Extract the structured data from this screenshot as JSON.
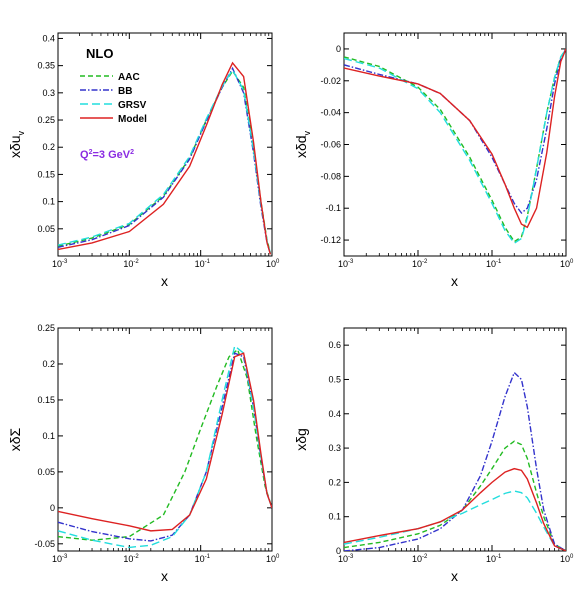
{
  "colors": {
    "AAC": "#22bb22",
    "BB": "#3333cc",
    "GRSV": "#22dddd",
    "Model": "#dd2222",
    "q2_text": "#8a2be2"
  },
  "annotations": {
    "order": "NLO",
    "q2": "Q²=3 GeV²"
  },
  "chart_data": [
    {
      "type": "line",
      "panel": "top-left",
      "xlabel": "x",
      "ylabel": "xδu_v",
      "xscale": "log",
      "xlim": [
        0.001,
        1
      ],
      "ylim": [
        0,
        0.41
      ],
      "yticks": [
        0.05,
        0.1,
        0.15,
        0.2,
        0.25,
        0.3,
        0.35,
        0.4
      ],
      "ytick_labels": [
        "0.05",
        "0.1",
        "0.15",
        "0.2",
        "0.25",
        "0.3",
        "0.35",
        "0.4"
      ],
      "legend": [
        "AAC",
        "BB",
        "GRSV",
        "Model"
      ],
      "series": [
        {
          "name": "AAC",
          "x": [
            0.001,
            0.003,
            0.01,
            0.03,
            0.07,
            0.12,
            0.2,
            0.28,
            0.4,
            0.55,
            0.7,
            0.85,
            0.95
          ],
          "values": [
            0.018,
            0.033,
            0.058,
            0.11,
            0.18,
            0.25,
            0.31,
            0.34,
            0.31,
            0.2,
            0.1,
            0.03,
            0.005
          ]
        },
        {
          "name": "BB",
          "x": [
            0.001,
            0.003,
            0.01,
            0.03,
            0.07,
            0.12,
            0.2,
            0.28,
            0.4,
            0.55,
            0.7,
            0.85,
            0.95
          ],
          "values": [
            0.016,
            0.03,
            0.056,
            0.108,
            0.178,
            0.248,
            0.31,
            0.345,
            0.3,
            0.19,
            0.09,
            0.025,
            0.004
          ]
        },
        {
          "name": "GRSV",
          "x": [
            0.001,
            0.003,
            0.01,
            0.03,
            0.07,
            0.12,
            0.2,
            0.28,
            0.4,
            0.55,
            0.7,
            0.85,
            0.95
          ],
          "values": [
            0.02,
            0.035,
            0.06,
            0.113,
            0.183,
            0.252,
            0.312,
            0.342,
            0.305,
            0.195,
            0.095,
            0.028,
            0.005
          ]
        },
        {
          "name": "Model",
          "x": [
            0.001,
            0.003,
            0.01,
            0.03,
            0.07,
            0.12,
            0.2,
            0.28,
            0.4,
            0.55,
            0.7,
            0.85,
            0.95
          ],
          "values": [
            0.012,
            0.024,
            0.045,
            0.095,
            0.165,
            0.24,
            0.315,
            0.355,
            0.33,
            0.21,
            0.1,
            0.025,
            0.003
          ]
        }
      ]
    },
    {
      "type": "line",
      "panel": "top-right",
      "xlabel": "x",
      "ylabel": "xδd_v",
      "xscale": "log",
      "xlim": [
        0.001,
        1
      ],
      "ylim": [
        -0.13,
        0.01
      ],
      "yticks": [
        0,
        -0.02,
        -0.04,
        -0.06,
        -0.08,
        -0.1,
        -0.12
      ],
      "ytick_labels": [
        "0",
        "-0.02",
        "-0.04",
        "-0.06",
        "-0.08",
        "-0.1",
        "-0.12"
      ],
      "series": [
        {
          "name": "AAC",
          "x": [
            0.001,
            0.003,
            0.01,
            0.02,
            0.05,
            0.1,
            0.15,
            0.2,
            0.25,
            0.3,
            0.4,
            0.55,
            0.7,
            0.85,
            1.0
          ],
          "values": [
            -0.005,
            -0.011,
            -0.024,
            -0.038,
            -0.068,
            -0.095,
            -0.112,
            -0.121,
            -0.118,
            -0.105,
            -0.075,
            -0.04,
            -0.018,
            -0.005,
            0
          ]
        },
        {
          "name": "BB",
          "x": [
            0.001,
            0.003,
            0.01,
            0.02,
            0.05,
            0.1,
            0.15,
            0.2,
            0.25,
            0.3,
            0.4,
            0.55,
            0.7,
            0.85,
            1.0
          ],
          "values": [
            -0.01,
            -0.016,
            -0.022,
            -0.028,
            -0.045,
            -0.068,
            -0.085,
            -0.097,
            -0.103,
            -0.1,
            -0.082,
            -0.05,
            -0.022,
            -0.006,
            0
          ]
        },
        {
          "name": "GRSV",
          "x": [
            0.001,
            0.003,
            0.01,
            0.02,
            0.05,
            0.1,
            0.15,
            0.2,
            0.25,
            0.3,
            0.4,
            0.55,
            0.7,
            0.85,
            1.0
          ],
          "values": [
            -0.006,
            -0.012,
            -0.025,
            -0.04,
            -0.07,
            -0.097,
            -0.114,
            -0.122,
            -0.119,
            -0.106,
            -0.075,
            -0.04,
            -0.018,
            -0.005,
            0
          ]
        },
        {
          "name": "Model",
          "x": [
            0.001,
            0.003,
            0.01,
            0.02,
            0.05,
            0.1,
            0.15,
            0.2,
            0.25,
            0.3,
            0.4,
            0.55,
            0.7,
            0.85,
            1.0
          ],
          "values": [
            -0.012,
            -0.017,
            -0.022,
            -0.028,
            -0.045,
            -0.066,
            -0.085,
            -0.1,
            -0.11,
            -0.112,
            -0.1,
            -0.065,
            -0.03,
            -0.008,
            0
          ]
        }
      ]
    },
    {
      "type": "line",
      "panel": "bottom-left",
      "xlabel": "x",
      "ylabel": "xδΣ",
      "xscale": "log",
      "xlim": [
        0.001,
        1
      ],
      "ylim": [
        -0.06,
        0.25
      ],
      "yticks": [
        -0.05,
        0,
        0.05,
        0.1,
        0.15,
        0.2,
        0.25
      ],
      "ytick_labels": [
        "-0.05",
        "0",
        "0.05",
        "0.1",
        "0.15",
        "0.2",
        "0.25"
      ],
      "series": [
        {
          "name": "AAC",
          "x": [
            0.001,
            0.003,
            0.01,
            0.03,
            0.06,
            0.1,
            0.17,
            0.25,
            0.33,
            0.45,
            0.6,
            0.8,
            1.0
          ],
          "values": [
            -0.04,
            -0.045,
            -0.04,
            -0.01,
            0.05,
            0.11,
            0.17,
            0.21,
            0.22,
            0.18,
            0.1,
            0.03,
            0
          ]
        },
        {
          "name": "BB",
          "x": [
            0.001,
            0.003,
            0.01,
            0.02,
            0.04,
            0.07,
            0.12,
            0.2,
            0.3,
            0.4,
            0.55,
            0.7,
            0.85,
            1.0
          ],
          "values": [
            -0.02,
            -0.033,
            -0.043,
            -0.046,
            -0.038,
            -0.01,
            0.05,
            0.14,
            0.215,
            0.21,
            0.14,
            0.07,
            0.02,
            0
          ]
        },
        {
          "name": "GRSV",
          "x": [
            0.001,
            0.003,
            0.01,
            0.02,
            0.04,
            0.07,
            0.12,
            0.2,
            0.3,
            0.4,
            0.55,
            0.7,
            0.85,
            1.0
          ],
          "values": [
            -0.032,
            -0.045,
            -0.055,
            -0.052,
            -0.04,
            -0.01,
            0.05,
            0.15,
            0.225,
            0.215,
            0.14,
            0.07,
            0.02,
            0
          ]
        },
        {
          "name": "Model",
          "x": [
            0.001,
            0.003,
            0.01,
            0.02,
            0.04,
            0.07,
            0.12,
            0.2,
            0.3,
            0.4,
            0.55,
            0.7,
            0.85,
            1.0
          ],
          "values": [
            -0.005,
            -0.015,
            -0.025,
            -0.032,
            -0.03,
            -0.01,
            0.04,
            0.13,
            0.21,
            0.215,
            0.15,
            0.075,
            0.02,
            0
          ]
        }
      ]
    },
    {
      "type": "line",
      "panel": "bottom-right",
      "xlabel": "x",
      "ylabel": "xδg",
      "xscale": "log",
      "xlim": [
        0.001,
        1
      ],
      "ylim": [
        0,
        0.65
      ],
      "yticks": [
        0,
        0.1,
        0.2,
        0.3,
        0.4,
        0.5,
        0.6
      ],
      "ytick_labels": [
        "0",
        "0.1",
        "0.2",
        "0.3",
        "0.4",
        "0.5",
        "0.6"
      ],
      "series": [
        {
          "name": "AAC",
          "x": [
            0.001,
            0.003,
            0.01,
            0.02,
            0.04,
            0.07,
            0.1,
            0.15,
            0.2,
            0.25,
            0.3,
            0.4,
            0.5,
            0.7,
            1.0
          ],
          "values": [
            0.01,
            0.025,
            0.05,
            0.075,
            0.12,
            0.19,
            0.24,
            0.3,
            0.32,
            0.31,
            0.27,
            0.17,
            0.1,
            0.02,
            0
          ]
        },
        {
          "name": "BB",
          "x": [
            0.001,
            0.003,
            0.01,
            0.02,
            0.04,
            0.07,
            0.1,
            0.15,
            0.2,
            0.25,
            0.3,
            0.4,
            0.5,
            0.7,
            1.0
          ],
          "values": [
            0,
            0.01,
            0.035,
            0.065,
            0.12,
            0.22,
            0.32,
            0.45,
            0.52,
            0.5,
            0.42,
            0.24,
            0.12,
            0.02,
            0
          ]
        },
        {
          "name": "GRSV",
          "x": [
            0.001,
            0.003,
            0.01,
            0.02,
            0.04,
            0.07,
            0.1,
            0.15,
            0.2,
            0.25,
            0.3,
            0.4,
            0.5,
            0.7,
            1.0
          ],
          "values": [
            0.02,
            0.04,
            0.065,
            0.085,
            0.11,
            0.135,
            0.15,
            0.168,
            0.175,
            0.17,
            0.155,
            0.11,
            0.07,
            0.015,
            0
          ]
        },
        {
          "name": "Model",
          "x": [
            0.001,
            0.003,
            0.01,
            0.02,
            0.04,
            0.07,
            0.1,
            0.15,
            0.2,
            0.25,
            0.3,
            0.4,
            0.5,
            0.7,
            1.0
          ],
          "values": [
            0.025,
            0.045,
            0.065,
            0.085,
            0.12,
            0.17,
            0.2,
            0.23,
            0.24,
            0.235,
            0.21,
            0.14,
            0.08,
            0.015,
            0
          ]
        }
      ]
    }
  ]
}
